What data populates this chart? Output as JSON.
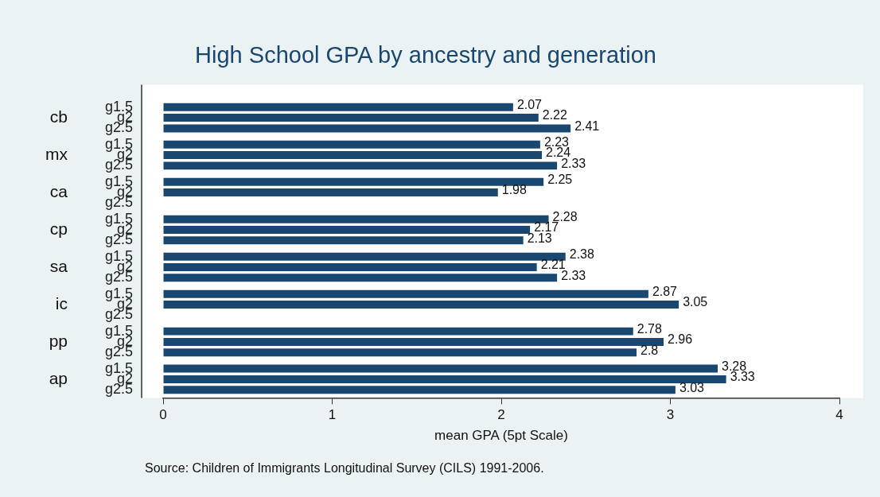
{
  "chart_data": {
    "type": "bar",
    "orientation": "horizontal",
    "title": "High School GPA by ancestry and generation",
    "xlabel": "mean GPA (5pt Scale)",
    "annotations": [
      "Source: Children of Immigrants Longitudinal Survey (CILS) 1991-2006."
    ],
    "categories": [
      "cb",
      "mx",
      "ca",
      "cp",
      "sa",
      "ic",
      "pp",
      "ap"
    ],
    "series": [
      {
        "name": "g1.5",
        "color": "#1a476f",
        "values": [
          2.07,
          2.23,
          2.25,
          2.28,
          2.38,
          2.87,
          2.78,
          3.28
        ]
      },
      {
        "name": "g2",
        "color": "#1a476f",
        "values": [
          2.22,
          2.24,
          1.98,
          2.17,
          2.21,
          3.05,
          2.96,
          3.33
        ]
      },
      {
        "name": "g2.5",
        "color": "#1a476f",
        "values": [
          2.41,
          2.33,
          null,
          2.13,
          2.33,
          null,
          2.8,
          3.03
        ]
      }
    ],
    "xlim": [
      0,
      4
    ],
    "xticks": [
      0,
      1,
      2,
      3,
      4
    ],
    "grid": false,
    "legend": false,
    "data_labels": true
  }
}
